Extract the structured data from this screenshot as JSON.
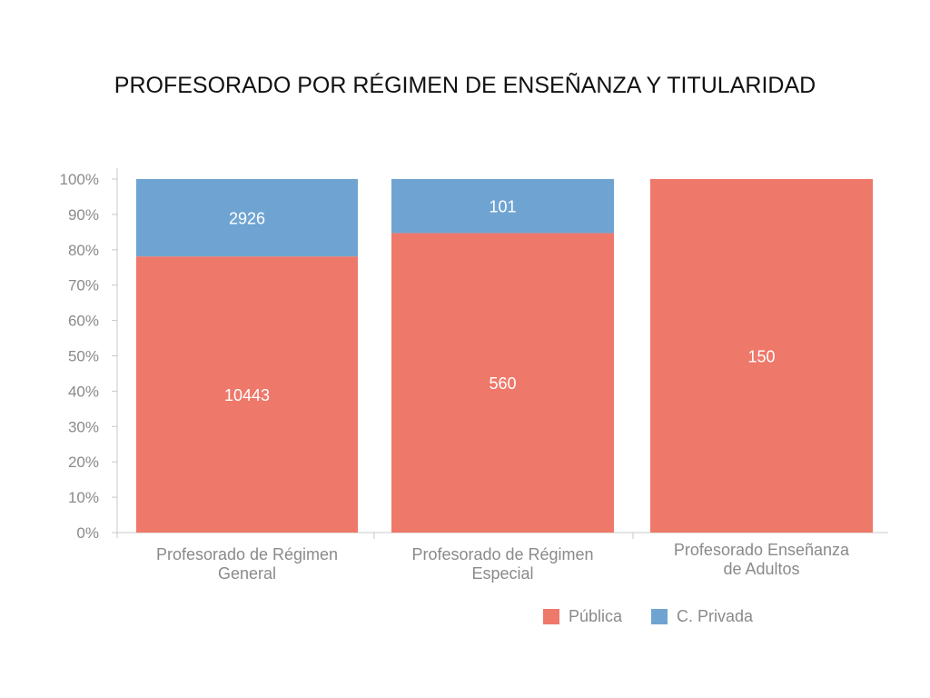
{
  "slide_title": "PROFESORADO POR RÉGIMEN DE ENSEÑANZA Y TITULARIDAD",
  "colors": {
    "publica": "#ee786a",
    "privada": "#6fa4d2",
    "axis": "#c8c8c8",
    "text": "#8a8a8a"
  },
  "chart_data": {
    "type": "bar",
    "stacked": true,
    "normalized": true,
    "title": "",
    "xlabel": "",
    "ylabel": "",
    "ylim": [
      0,
      100
    ],
    "y_ticks": [
      "0%",
      "10%",
      "20%",
      "30%",
      "40%",
      "50%",
      "60%",
      "70%",
      "80%",
      "90%",
      "100%"
    ],
    "categories": [
      [
        "Profesorado de Régimen",
        "General"
      ],
      [
        "Profesorado de Régimen",
        "Especial"
      ],
      [
        "Profesorado Enseñanza",
        "de Adultos"
      ]
    ],
    "series": [
      {
        "name": "Pública",
        "values": [
          10443,
          560,
          150
        ]
      },
      {
        "name": "C. Privada",
        "values": [
          2926,
          101,
          0
        ]
      }
    ],
    "legend_position": "bottom-right",
    "grid": false
  }
}
